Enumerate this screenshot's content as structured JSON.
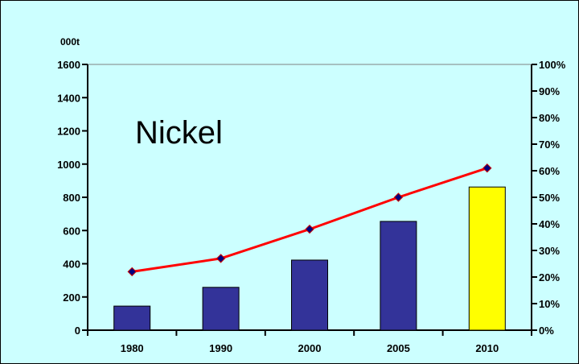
{
  "chart_data": {
    "type": "bar",
    "overlay_label": "Nickel",
    "y_unit_label": "000t",
    "categories": [
      "1980",
      "1990",
      "2000",
      "2005",
      "2010"
    ],
    "series": [
      {
        "type": "bar",
        "axis": "left",
        "values": [
          145,
          258,
          422,
          655,
          862
        ],
        "colors": [
          "#333399",
          "#333399",
          "#333399",
          "#333399",
          "#ffff00"
        ]
      },
      {
        "type": "line",
        "axis": "right",
        "values": [
          22,
          27,
          38,
          50,
          61
        ],
        "color": "#ff0000",
        "marker_color": "#000080"
      }
    ],
    "y_left": {
      "min": 0,
      "max": 1600,
      "ticks": [
        "0",
        "200",
        "400",
        "600",
        "800",
        "1000",
        "1200",
        "1400",
        "1600"
      ]
    },
    "y_right": {
      "min": 0,
      "max": 100,
      "ticks": [
        "0%",
        "10%",
        "20%",
        "30%",
        "40%",
        "50%",
        "60%",
        "70%",
        "80%",
        "90%",
        "100%"
      ]
    },
    "background": "#ccffff",
    "grid": false
  }
}
